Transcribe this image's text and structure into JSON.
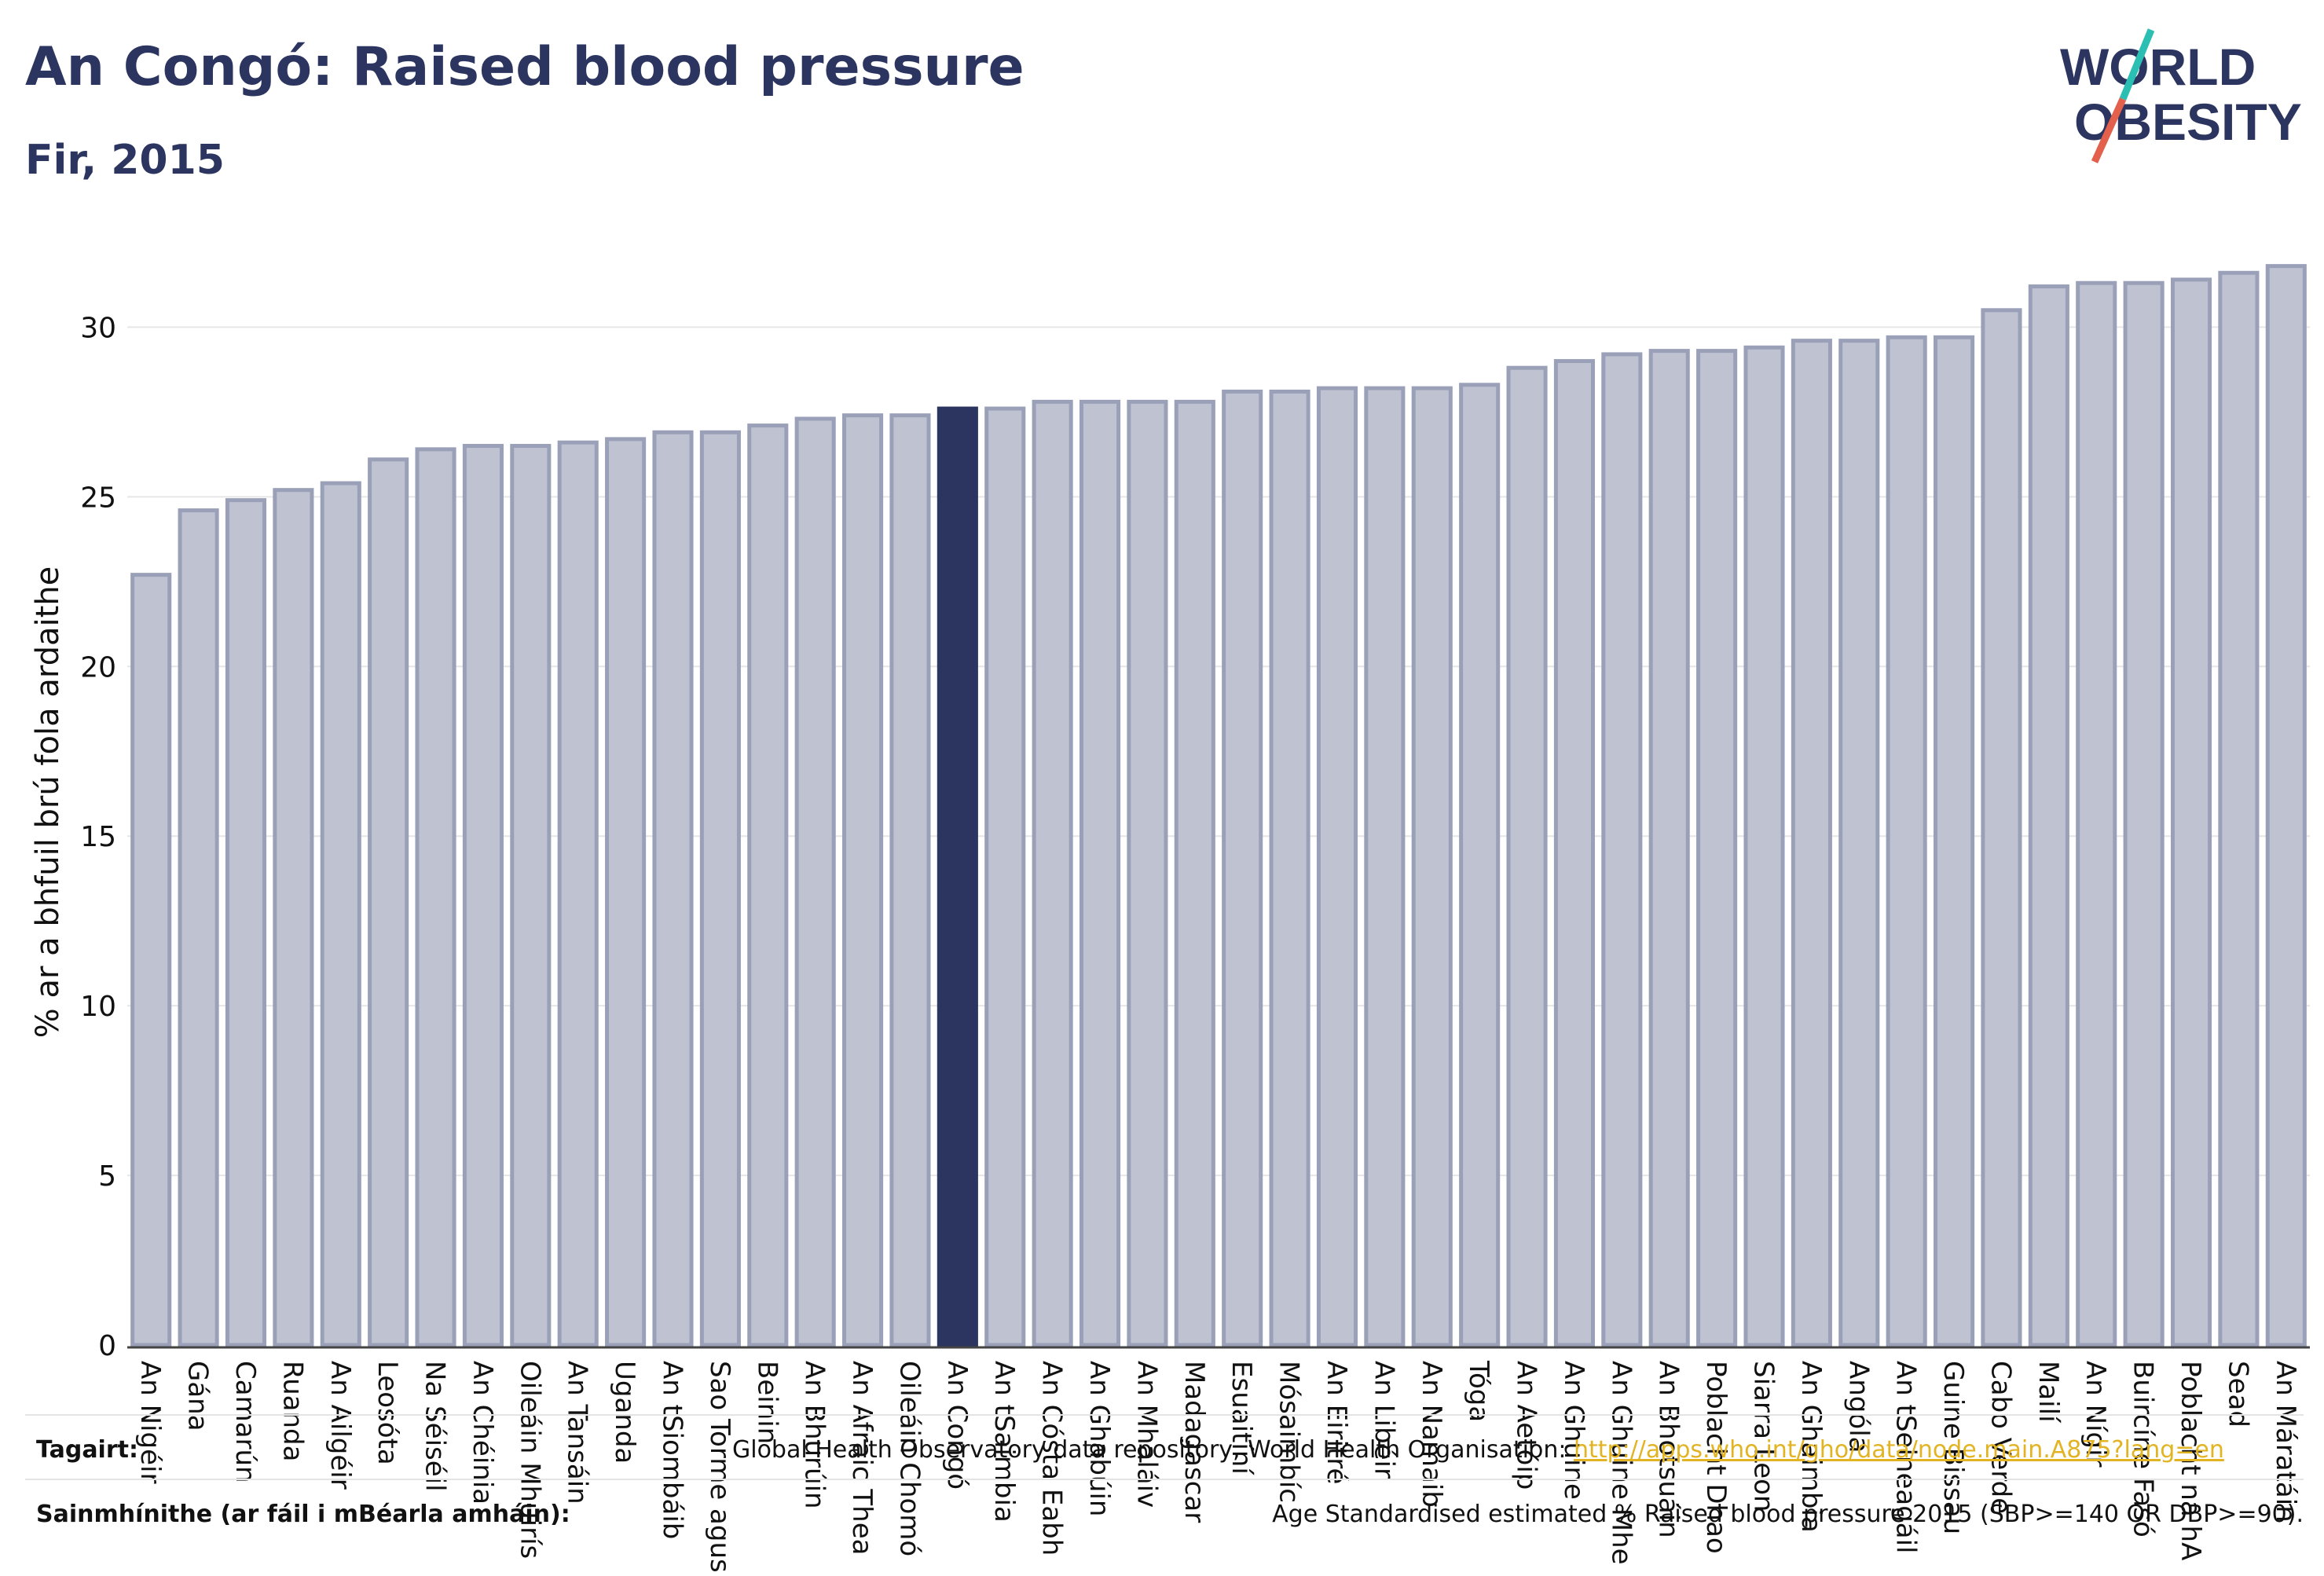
{
  "header": {
    "title": "An Congó: Raised blood pressure",
    "subtitle": "Fir, 2015"
  },
  "logo": {
    "line1": "WORLD",
    "line2": "OBESITY",
    "accent_colors": [
      "#2bbfb3",
      "#e2604c"
    ]
  },
  "colors": {
    "bar": "#bfc2d1",
    "bar_stroke": "#9aa0b8",
    "highlight": "#2b3560",
    "text": "#2b3560"
  },
  "chart_data": {
    "type": "bar",
    "ylabel": "% ar a bhfuil brú fola ardaithe",
    "ylim": [
      0,
      32
    ],
    "yticks": [
      0,
      5,
      10,
      15,
      20,
      25,
      30
    ],
    "grid": true,
    "highlight_category": "An Congó",
    "categories": [
      "An Nigéir",
      "Gána",
      "Camarún",
      "Ruanda",
      "An Ailgéir",
      "Leosóta",
      "Na Séiséil",
      "An Chéinia",
      "Oileáin Mhuirís",
      "An Tansáin",
      "Uganda",
      "An tSiombáib",
      "Sao Torme agus",
      "Beinin",
      "An Bhurúin",
      "An Afraic Thea",
      "Oileáin Chomó",
      "An Congó",
      "An tSaimbia",
      "An Cósta Eabh",
      "An Ghabúin",
      "An Mhaláiv",
      "Madagascar",
      "Esuaitíní",
      "Mósaimbíc",
      "An Eiritré",
      "An Libéir",
      "An Namaib",
      "Tóga",
      "An Aetóip",
      "An Ghuine",
      "An Ghuine Mhe",
      "An Bhotsuáin",
      "Poblacht Dhao",
      "Siarra Leon",
      "An Ghaimbia",
      "Angóla",
      "An tSeineagáil",
      "Guine Bissau",
      "Cabo Verde",
      "Mailí",
      "An Nígir",
      "Buircíne Fasó",
      "Poblacht na hA",
      "Sead",
      "An Máratáin"
    ],
    "values": [
      22.7,
      24.6,
      24.9,
      25.2,
      25.4,
      26.1,
      26.4,
      26.5,
      26.5,
      26.6,
      26.7,
      26.9,
      26.9,
      27.1,
      27.3,
      27.4,
      27.4,
      27.6,
      27.6,
      27.8,
      27.8,
      27.8,
      27.8,
      28.1,
      28.1,
      28.2,
      28.2,
      28.2,
      28.3,
      28.8,
      29.0,
      29.2,
      29.3,
      29.3,
      29.4,
      29.6,
      29.6,
      29.7,
      29.7,
      30.5,
      31.2,
      31.3,
      31.3,
      31.4,
      31.6,
      31.8
    ]
  },
  "footer": {
    "source_label": "Tagairt:",
    "source_text": "Global Health Observatory data repository, World Health Organisation: ",
    "source_link": "http://apps.who.int/gho/data/node.main.A875?lang=en",
    "definition_label": "Sainmhínithe (ar fáil i mBéarla amháin):",
    "definition_text": "Age Standardised estimated % Raised blood pressure 2015 (SBP>=140 OR DBP>=90)."
  }
}
